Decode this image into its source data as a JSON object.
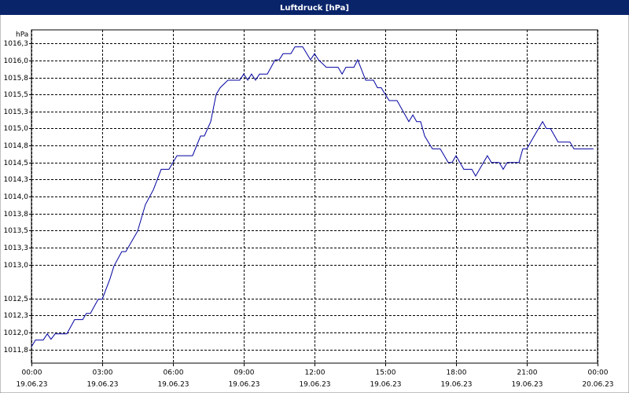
{
  "chart_data": {
    "type": "line",
    "title": "Luftdruck [hPa]",
    "y_unit": "hPa",
    "color": "#0000a0",
    "grid": true,
    "xlim": [
      0,
      24
    ],
    "ylim": [
      1011.55,
      1016.45
    ],
    "xticks": [
      {
        "value": 0,
        "label": "00:00",
        "date": "19.06.23"
      },
      {
        "value": 3,
        "label": "03:00",
        "date": "19.06.23"
      },
      {
        "value": 6,
        "label": "06:00",
        "date": "19.06.23"
      },
      {
        "value": 9,
        "label": "09:00",
        "date": "19.06.23"
      },
      {
        "value": 12,
        "label": "12:00",
        "date": "19.06.23"
      },
      {
        "value": 15,
        "label": "15:00",
        "date": "19.06.23"
      },
      {
        "value": 18,
        "label": "18:00",
        "date": "19.06.23"
      },
      {
        "value": 21,
        "label": "21:00",
        "date": "19.06.23"
      },
      {
        "value": 24,
        "label": "00:00",
        "date": "20.06.23"
      }
    ],
    "yticks": [
      {
        "value": 1016.25,
        "label": "1016,3"
      },
      {
        "value": 1016,
        "label": "1016,0"
      },
      {
        "value": 1015.75,
        "label": "1015,8"
      },
      {
        "value": 1015.5,
        "label": "1015,5"
      },
      {
        "value": 1015.25,
        "label": "1015,3"
      },
      {
        "value": 1015,
        "label": "1015,0"
      },
      {
        "value": 1014.75,
        "label": "1014,8"
      },
      {
        "value": 1014.5,
        "label": "1014,5"
      },
      {
        "value": 1014.25,
        "label": "1014,3"
      },
      {
        "value": 1014,
        "label": "1014,0"
      },
      {
        "value": 1013.75,
        "label": "1013,8"
      },
      {
        "value": 1013.5,
        "label": "1013,5"
      },
      {
        "value": 1013.25,
        "label": "1013,3"
      },
      {
        "value": 1013,
        "label": "1013,0"
      },
      {
        "value": 1012.5,
        "label": "1012,5"
      },
      {
        "value": 1012.25,
        "label": "1012,3"
      },
      {
        "value": 1012,
        "label": "1012,0"
      },
      {
        "value": 1011.75,
        "label": "1011,8"
      }
    ],
    "x": [
      0,
      0.17,
      0.5,
      0.67,
      0.83,
      1,
      1.5,
      1.83,
      2.17,
      2.33,
      2.5,
      2.83,
      3,
      3.33,
      3.5,
      3.83,
      4,
      4.5,
      4.83,
      5.17,
      5.5,
      5.83,
      6.17,
      6.83,
      7.17,
      7.33,
      7.6,
      7.83,
      8,
      8.33,
      8.83,
      9,
      9.17,
      9.33,
      9.5,
      9.67,
      10,
      10.33,
      10.5,
      10.67,
      11,
      11.17,
      11.5,
      11.83,
      12,
      12.17,
      12.5,
      13,
      13.17,
      13.33,
      13.67,
      13.83,
      14.17,
      14.5,
      14.67,
      14.83,
      15,
      15.17,
      15.5,
      16,
      16.17,
      16.33,
      16.5,
      16.67,
      17,
      17.33,
      17.67,
      17.83,
      18,
      18.33,
      18.67,
      18.83,
      19.33,
      19.5,
      19.83,
      20,
      20.17,
      20.67,
      20.83,
      21,
      21.33,
      21.67,
      21.83,
      22,
      22.33,
      22.83,
      23,
      23.83
    ],
    "values": [
      1011.79,
      1011.89,
      1011.89,
      1011.98,
      1011.9,
      1011.98,
      1011.98,
      1012.19,
      1012.19,
      1012.28,
      1012.28,
      1012.49,
      1012.49,
      1012.79,
      1012.98,
      1013.19,
      1013.19,
      1013.49,
      1013.88,
      1014.1,
      1014.4,
      1014.4,
      1014.6,
      1014.6,
      1014.89,
      1014.89,
      1015.1,
      1015.5,
      1015.6,
      1015.71,
      1015.71,
      1015.8,
      1015.71,
      1015.8,
      1015.71,
      1015.8,
      1015.8,
      1016.01,
      1016.01,
      1016.1,
      1016.1,
      1016.2,
      1016.2,
      1016.01,
      1016.1,
      1016.01,
      1015.9,
      1015.9,
      1015.8,
      1015.9,
      1015.9,
      1016.01,
      1015.71,
      1015.71,
      1015.6,
      1015.6,
      1015.5,
      1015.41,
      1015.41,
      1015.1,
      1015.2,
      1015.1,
      1015.1,
      1014.89,
      1014.7,
      1014.7,
      1014.5,
      1014.5,
      1014.6,
      1014.4,
      1014.4,
      1014.3,
      1014.6,
      1014.5,
      1014.5,
      1014.4,
      1014.5,
      1014.5,
      1014.7,
      1014.7,
      1014.9,
      1015.1,
      1015.0,
      1015.0,
      1014.8,
      1014.8,
      1014.7,
      1014.7
    ]
  }
}
